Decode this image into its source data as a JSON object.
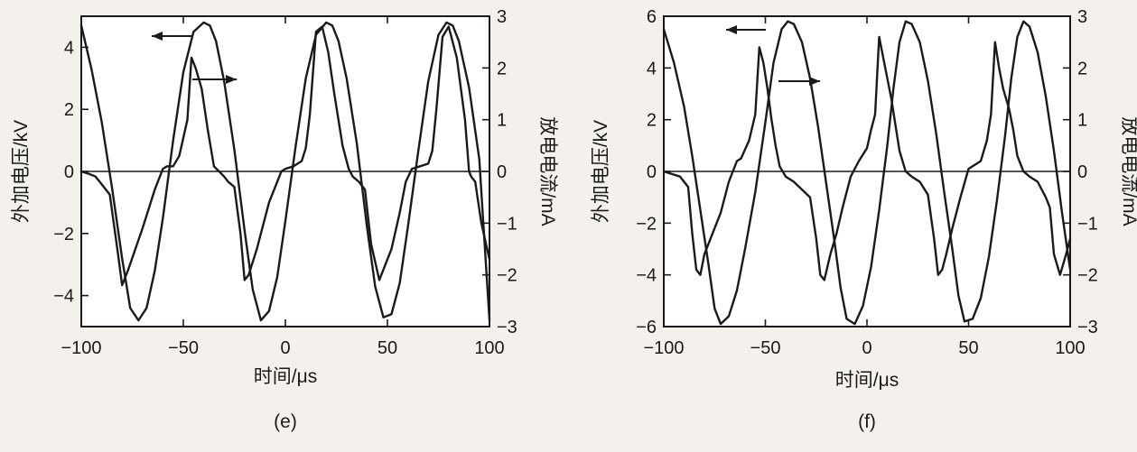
{
  "chart_data": [
    {
      "type": "line",
      "panel_label": "(e)",
      "xlabel": "时间/μs",
      "ylabel_left": "外加电压/kV",
      "ylabel_right": "放电电流/mA",
      "xlim": [
        -100,
        100
      ],
      "ylim_left": [
        -5,
        5
      ],
      "ylim_right": [
        -3,
        3
      ],
      "x_ticks": [
        -100,
        -50,
        0,
        50,
        100
      ],
      "x_tick_labels": [
        "−100",
        "−50",
        "0",
        "50",
        "100"
      ],
      "y_left_ticks": [
        -4,
        -2,
        0,
        2,
        4
      ],
      "y_left_tick_labels": [
        "−4",
        "−2",
        "0",
        "2",
        "4"
      ],
      "y_right_ticks": [
        -3,
        -2,
        -1,
        0,
        1,
        2,
        3
      ],
      "y_right_tick_labels": [
        "−3",
        "−2",
        "−1",
        "0",
        "1",
        "2",
        "3"
      ],
      "series": [
        {
          "axis": "left",
          "x": [
            -100,
            -95,
            -90,
            -85,
            -80,
            -76,
            -72,
            -68,
            -64,
            -60,
            -55,
            -50,
            -45,
            -40,
            -37,
            -34,
            -30,
            -25,
            -20,
            -16,
            -12,
            -8,
            -4,
            0,
            5,
            10,
            15,
            20,
            23,
            26,
            30,
            35,
            40,
            44,
            48,
            52,
            56,
            60,
            65,
            70,
            75,
            79,
            82,
            85,
            90,
            95,
            100
          ],
          "y": [
            4.7,
            3.3,
            1.6,
            -0.5,
            -2.8,
            -4.4,
            -4.8,
            -4.4,
            -3.2,
            -1.5,
            1.0,
            3.2,
            4.5,
            4.8,
            4.7,
            4.2,
            2.9,
            0.7,
            -1.9,
            -3.8,
            -4.8,
            -4.5,
            -3.4,
            -1.6,
            0.8,
            3.0,
            4.4,
            4.8,
            4.7,
            4.2,
            3.0,
            0.9,
            -1.8,
            -3.7,
            -4.7,
            -4.6,
            -3.6,
            -1.8,
            0.6,
            2.9,
            4.4,
            4.8,
            4.7,
            4.2,
            2.7,
            0.4,
            -4.8
          ]
        },
        {
          "axis": "right",
          "x": [
            -100,
            -96,
            -93,
            -90,
            -86,
            -82,
            -80,
            -77,
            -70,
            -64,
            -60,
            -58,
            -55,
            -52,
            -48,
            -46,
            -44,
            -41,
            -38,
            -35,
            -30,
            -28,
            -25,
            -22,
            -20,
            -18,
            -14,
            -8,
            -4,
            -2,
            0,
            4,
            8,
            10,
            12,
            15,
            18,
            21,
            24,
            28,
            31,
            33,
            36,
            39,
            42,
            46,
            52,
            56,
            59,
            62,
            66,
            70,
            72,
            74,
            77,
            80,
            84,
            88,
            90,
            91,
            93,
            96,
            100
          ],
          "y": [
            0.0,
            -0.05,
            -0.1,
            -0.25,
            -0.45,
            -1.6,
            -2.2,
            -1.9,
            -1.1,
            -0.35,
            0.05,
            0.1,
            0.1,
            0.3,
            1.0,
            2.2,
            2.0,
            1.6,
            0.8,
            0.1,
            -0.1,
            -0.2,
            -0.3,
            -1.2,
            -2.1,
            -2.0,
            -1.5,
            -0.6,
            -0.2,
            0.0,
            0.05,
            0.1,
            0.2,
            0.45,
            1.1,
            2.7,
            2.8,
            2.3,
            1.5,
            0.5,
            0.05,
            -0.1,
            -0.2,
            -0.35,
            -1.4,
            -2.1,
            -1.5,
            -0.8,
            -0.2,
            0.05,
            0.1,
            0.15,
            0.4,
            1.2,
            2.6,
            2.8,
            2.2,
            1.0,
            0.0,
            -0.1,
            -0.2,
            -1.0,
            -1.7
          ]
        }
      ]
    },
    {
      "type": "line",
      "panel_label": "(f)",
      "xlabel": "时间/μs",
      "ylabel_left": "外加电压/kV",
      "ylabel_right": "放电电流/mA",
      "xlim": [
        -100,
        100
      ],
      "ylim_left": [
        -6,
        6
      ],
      "ylim_right": [
        -3,
        3
      ],
      "x_ticks": [
        -100,
        -50,
        0,
        50,
        100
      ],
      "x_tick_labels": [
        "−100",
        "−50",
        "0",
        "50",
        "100"
      ],
      "y_left_ticks": [
        -6,
        -4,
        -2,
        0,
        2,
        4,
        6
      ],
      "y_left_tick_labels": [
        "−6",
        "−4",
        "−2",
        "0",
        "2",
        "4",
        "6"
      ],
      "y_right_ticks": [
        -3,
        -2,
        -1,
        0,
        1,
        2,
        3
      ],
      "y_right_tick_labels": [
        "−3",
        "−2",
        "−1",
        "0",
        "1",
        "2",
        "3"
      ],
      "series": [
        {
          "axis": "left",
          "x": [
            -100,
            -95,
            -90,
            -86,
            -82,
            -78,
            -75,
            -72,
            -68,
            -64,
            -60,
            -55,
            -50,
            -46,
            -42,
            -39,
            -36,
            -32,
            -28,
            -24,
            -20,
            -16,
            -13,
            -10,
            -6,
            -2,
            2,
            6,
            10,
            13,
            16,
            19,
            22,
            26,
            30,
            34,
            38,
            42,
            45,
            48,
            52,
            56,
            60,
            64,
            68,
            71,
            74,
            77,
            80,
            84,
            88,
            92,
            96,
            100
          ],
          "y": [
            5.5,
            4.2,
            2.5,
            0.6,
            -1.5,
            -3.6,
            -5.3,
            -5.9,
            -5.6,
            -4.6,
            -3.0,
            -0.8,
            1.9,
            4.2,
            5.5,
            5.8,
            5.7,
            5.0,
            3.6,
            1.7,
            -0.5,
            -2.7,
            -4.5,
            -5.7,
            -5.9,
            -5.2,
            -3.7,
            -1.5,
            1.0,
            3.2,
            5.0,
            5.8,
            5.7,
            5.0,
            3.5,
            1.5,
            -0.8,
            -3.0,
            -4.8,
            -5.8,
            -5.7,
            -4.9,
            -3.3,
            -1.1,
            1.4,
            3.6,
            5.2,
            5.8,
            5.6,
            4.6,
            2.9,
            0.8,
            -1.6,
            -3.8
          ]
        },
        {
          "axis": "right",
          "x": [
            -100,
            -96,
            -92,
            -88,
            -86,
            -84,
            -82,
            -80,
            -76,
            -72,
            -68,
            -64,
            -62,
            -58,
            -55,
            -53,
            -51,
            -49,
            -47,
            -45,
            -43,
            -40,
            -36,
            -32,
            -28,
            -25,
            -23,
            -21,
            -18,
            -15,
            -12,
            -8,
            -4,
            0,
            2,
            4,
            6,
            8,
            10,
            12,
            14,
            16,
            19,
            22,
            26,
            30,
            33,
            35,
            37,
            39,
            42,
            46,
            50,
            54,
            56,
            59,
            61,
            63,
            65,
            67,
            70,
            72,
            74,
            77,
            80,
            84,
            88,
            90,
            92,
            95,
            98,
            100
          ],
          "y": [
            0.0,
            -0.05,
            -0.1,
            -0.3,
            -1.2,
            -1.9,
            -2.0,
            -1.6,
            -1.2,
            -0.8,
            -0.2,
            0.2,
            0.25,
            0.6,
            1.1,
            2.4,
            2.1,
            1.6,
            1.0,
            0.5,
            0.1,
            -0.1,
            -0.2,
            -0.35,
            -0.5,
            -1.3,
            -2.0,
            -2.1,
            -1.6,
            -1.2,
            -0.7,
            -0.1,
            0.2,
            0.45,
            0.8,
            1.1,
            2.6,
            2.2,
            1.8,
            1.4,
            0.9,
            0.4,
            0.0,
            -0.1,
            -0.2,
            -0.45,
            -1.3,
            -2.0,
            -1.9,
            -1.6,
            -1.1,
            -0.5,
            0.05,
            0.15,
            0.2,
            0.6,
            1.1,
            2.5,
            2.0,
            1.6,
            1.2,
            0.8,
            0.3,
            0.0,
            -0.1,
            -0.2,
            -0.5,
            -0.7,
            -1.6,
            -2.0,
            -1.6,
            -1.3
          ]
        }
      ]
    }
  ]
}
